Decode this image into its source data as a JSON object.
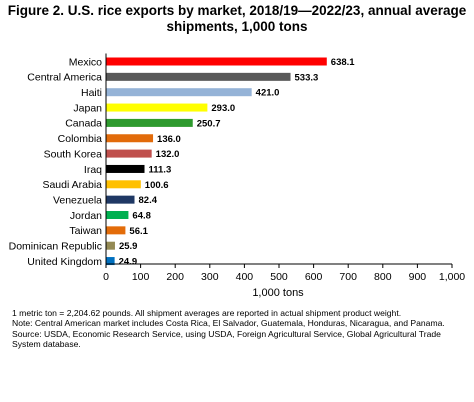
{
  "title_lines": [
    "Figure 2. U.S. rice exports by market, 2018/19—2022/23, annual average",
    "shipments, 1,000 tons"
  ],
  "chart_data": {
    "type": "bar",
    "orientation": "horizontal",
    "categories": [
      "Mexico",
      "Central America",
      "Haiti",
      "Japan",
      "Canada",
      "Colombia",
      "South Korea",
      "Iraq",
      "Saudi Arabia",
      "Venezuela",
      "Jordan",
      "Taiwan",
      "Dominican Republic",
      "United Kingdom"
    ],
    "values": [
      638.1,
      533.3,
      421.0,
      293.0,
      250.7,
      136.0,
      132.0,
      111.3,
      100.6,
      82.4,
      64.8,
      56.1,
      25.9,
      24.9
    ],
    "value_labels": [
      "638.1",
      "533.3",
      "421.0",
      "293.0",
      "250.7",
      "136.0",
      "132.0",
      "111.3",
      "100.6",
      "82.4",
      "64.8",
      "56.1",
      "25.9",
      "24.9"
    ],
    "colors": [
      "#ff0000",
      "#595959",
      "#95b3d7",
      "#ffff00",
      "#2e9a2e",
      "#e26b0a",
      "#c0504d",
      "#000000",
      "#ffc000",
      "#1f3864",
      "#00b050",
      "#e36c09",
      "#948a54",
      "#0070c0"
    ],
    "xlim": [
      0,
      1000
    ],
    "xticks": [
      0,
      100,
      200,
      300,
      400,
      500,
      600,
      700,
      800,
      900,
      1000
    ],
    "xtick_labels": [
      "0",
      "100",
      "200",
      "300",
      "400",
      "500",
      "600",
      "700",
      "800",
      "900",
      "1,000"
    ],
    "xlabel": "1,000 tons",
    "ylabel": "",
    "grid": false,
    "legend": "none"
  },
  "notes": [
    "1 metric ton = 2,204.62 pounds. All shipment averages are reported in actual shipment product weight.",
    "Note: Central American market includes Costa Rica, El Salvador, Guatemala, Honduras, Nicaragua, and Panama.",
    "Source: USDA, Economic Research Service, using USDA, Foreign Agricultural Service, Global Agricultural Trade System database."
  ]
}
